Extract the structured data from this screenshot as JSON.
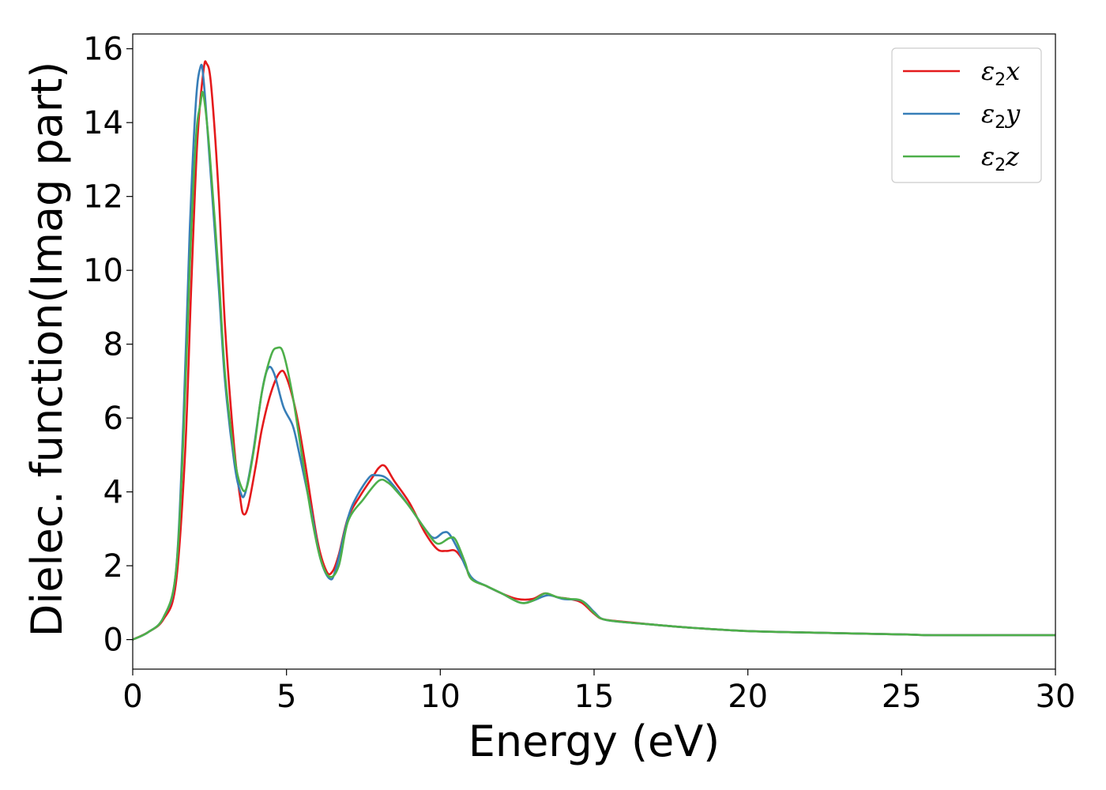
{
  "chart_data": {
    "type": "line",
    "title": "",
    "xlabel": "Energy (eV)",
    "ylabel": "Dielec. function(Imag part)",
    "xlim": [
      0,
      30
    ],
    "ylim": [
      -0.8,
      16.4
    ],
    "xticks": [
      0,
      5,
      10,
      15,
      20,
      25,
      30
    ],
    "yticks": [
      0,
      2,
      4,
      6,
      8,
      10,
      12,
      14,
      16
    ],
    "grid": false,
    "legend_position": "top-right",
    "series": [
      {
        "name": "ε2x",
        "legend_symbol": "ε",
        "legend_subscript": "2",
        "legend_suffix": "x",
        "color": "#e41a1c",
        "points": [
          [
            0,
            0
          ],
          [
            0.5,
            0.2
          ],
          [
            1.0,
            0.55
          ],
          [
            1.4,
            1.5
          ],
          [
            1.7,
            5.0
          ],
          [
            1.9,
            9.5
          ],
          [
            2.1,
            13.5
          ],
          [
            2.3,
            15.4
          ],
          [
            2.4,
            15.6
          ],
          [
            2.55,
            15.0
          ],
          [
            2.8,
            12.0
          ],
          [
            3.0,
            8.5
          ],
          [
            3.3,
            5.2
          ],
          [
            3.5,
            3.8
          ],
          [
            3.6,
            3.4
          ],
          [
            3.75,
            3.6
          ],
          [
            4.0,
            4.7
          ],
          [
            4.2,
            5.7
          ],
          [
            4.5,
            6.7
          ],
          [
            4.8,
            7.25
          ],
          [
            5.0,
            7.1
          ],
          [
            5.3,
            6.2
          ],
          [
            5.6,
            4.8
          ],
          [
            6.0,
            2.7
          ],
          [
            6.3,
            1.85
          ],
          [
            6.5,
            1.85
          ],
          [
            6.7,
            2.3
          ],
          [
            7.0,
            3.3
          ],
          [
            7.4,
            3.9
          ],
          [
            7.8,
            4.4
          ],
          [
            8.0,
            4.65
          ],
          [
            8.2,
            4.7
          ],
          [
            8.5,
            4.3
          ],
          [
            9.0,
            3.7
          ],
          [
            9.5,
            2.9
          ],
          [
            9.9,
            2.45
          ],
          [
            10.2,
            2.4
          ],
          [
            10.5,
            2.4
          ],
          [
            10.8,
            2.05
          ],
          [
            11.0,
            1.65
          ],
          [
            11.5,
            1.45
          ],
          [
            12.0,
            1.25
          ],
          [
            12.5,
            1.1
          ],
          [
            13.0,
            1.1
          ],
          [
            13.4,
            1.25
          ],
          [
            13.8,
            1.15
          ],
          [
            14.2,
            1.1
          ],
          [
            14.6,
            1.0
          ],
          [
            15.0,
            0.7
          ],
          [
            15.3,
            0.55
          ],
          [
            16.0,
            0.48
          ],
          [
            17,
            0.4
          ],
          [
            18,
            0.33
          ],
          [
            20,
            0.23
          ],
          [
            22,
            0.19
          ],
          [
            25,
            0.14
          ],
          [
            26,
            0.12
          ],
          [
            28,
            0.12
          ],
          [
            30,
            0.12
          ]
        ]
      },
      {
        "name": "ε2y",
        "legend_symbol": "ε",
        "legend_subscript": "2",
        "legend_suffix": "y",
        "color": "#377eb8",
        "points": [
          [
            0,
            0
          ],
          [
            0.5,
            0.2
          ],
          [
            1.0,
            0.6
          ],
          [
            1.4,
            1.8
          ],
          [
            1.65,
            6.0
          ],
          [
            1.85,
            11.0
          ],
          [
            2.05,
            14.5
          ],
          [
            2.2,
            15.5
          ],
          [
            2.3,
            15.2
          ],
          [
            2.5,
            13.0
          ],
          [
            2.8,
            9.5
          ],
          [
            3.0,
            7.0
          ],
          [
            3.3,
            4.8
          ],
          [
            3.5,
            4.0
          ],
          [
            3.65,
            3.95
          ],
          [
            3.9,
            5.0
          ],
          [
            4.2,
            6.7
          ],
          [
            4.4,
            7.35
          ],
          [
            4.6,
            7.2
          ],
          [
            4.9,
            6.3
          ],
          [
            5.2,
            5.8
          ],
          [
            5.4,
            5.1
          ],
          [
            5.8,
            3.5
          ],
          [
            6.1,
            2.2
          ],
          [
            6.4,
            1.65
          ],
          [
            6.6,
            1.9
          ],
          [
            7.0,
            3.3
          ],
          [
            7.3,
            3.9
          ],
          [
            7.7,
            4.4
          ],
          [
            7.9,
            4.45
          ],
          [
            8.2,
            4.4
          ],
          [
            8.5,
            4.15
          ],
          [
            9.0,
            3.6
          ],
          [
            9.5,
            3.0
          ],
          [
            9.8,
            2.75
          ],
          [
            10.1,
            2.9
          ],
          [
            10.3,
            2.85
          ],
          [
            10.6,
            2.4
          ],
          [
            11.0,
            1.7
          ],
          [
            11.5,
            1.45
          ],
          [
            12.0,
            1.25
          ],
          [
            12.6,
            1.0
          ],
          [
            13.0,
            1.05
          ],
          [
            13.5,
            1.2
          ],
          [
            14.0,
            1.1
          ],
          [
            14.6,
            1.05
          ],
          [
            15.0,
            0.75
          ],
          [
            15.3,
            0.55
          ],
          [
            16.0,
            0.47
          ],
          [
            17,
            0.4
          ],
          [
            18,
            0.33
          ],
          [
            20,
            0.23
          ],
          [
            22,
            0.19
          ],
          [
            25,
            0.14
          ],
          [
            26,
            0.12
          ],
          [
            28,
            0.12
          ],
          [
            30,
            0.12
          ]
        ]
      },
      {
        "name": "ε2z",
        "legend_symbol": "ε",
        "legend_subscript": "2",
        "legend_suffix": "z",
        "color": "#4daf4a",
        "points": [
          [
            0,
            0
          ],
          [
            0.5,
            0.2
          ],
          [
            1.0,
            0.6
          ],
          [
            1.4,
            1.8
          ],
          [
            1.65,
            5.5
          ],
          [
            1.85,
            10.0
          ],
          [
            2.05,
            13.5
          ],
          [
            2.2,
            14.5
          ],
          [
            2.3,
            14.75
          ],
          [
            2.5,
            13.2
          ],
          [
            2.8,
            9.8
          ],
          [
            3.0,
            7.2
          ],
          [
            3.3,
            5.0
          ],
          [
            3.5,
            4.2
          ],
          [
            3.7,
            4.1
          ],
          [
            3.95,
            5.2
          ],
          [
            4.2,
            6.7
          ],
          [
            4.5,
            7.7
          ],
          [
            4.7,
            7.9
          ],
          [
            4.9,
            7.75
          ],
          [
            5.2,
            6.6
          ],
          [
            5.5,
            5.0
          ],
          [
            5.8,
            3.4
          ],
          [
            6.1,
            2.2
          ],
          [
            6.4,
            1.7
          ],
          [
            6.7,
            2.0
          ],
          [
            7.0,
            3.2
          ],
          [
            7.5,
            3.8
          ],
          [
            8.0,
            4.3
          ],
          [
            8.3,
            4.25
          ],
          [
            8.6,
            4.0
          ],
          [
            9.0,
            3.6
          ],
          [
            9.5,
            3.0
          ],
          [
            9.9,
            2.6
          ],
          [
            10.3,
            2.75
          ],
          [
            10.5,
            2.7
          ],
          [
            10.8,
            2.1
          ],
          [
            11.0,
            1.65
          ],
          [
            11.5,
            1.45
          ],
          [
            12.0,
            1.25
          ],
          [
            12.6,
            1.0
          ],
          [
            13.0,
            1.05
          ],
          [
            13.4,
            1.25
          ],
          [
            13.8,
            1.15
          ],
          [
            14.2,
            1.1
          ],
          [
            14.6,
            1.05
          ],
          [
            15.0,
            0.72
          ],
          [
            15.3,
            0.55
          ],
          [
            16.0,
            0.47
          ],
          [
            17,
            0.4
          ],
          [
            18,
            0.33
          ],
          [
            20,
            0.23
          ],
          [
            22,
            0.19
          ],
          [
            25,
            0.14
          ],
          [
            26,
            0.12
          ],
          [
            28,
            0.12
          ],
          [
            30,
            0.12
          ]
        ]
      }
    ]
  }
}
